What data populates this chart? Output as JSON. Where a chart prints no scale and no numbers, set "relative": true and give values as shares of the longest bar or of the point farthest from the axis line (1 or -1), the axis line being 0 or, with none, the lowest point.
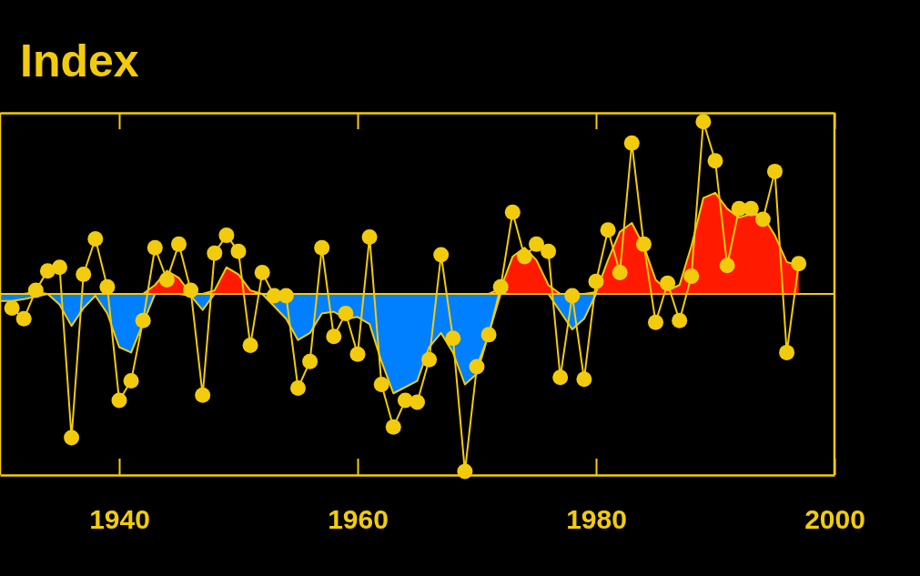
{
  "chart_data": {
    "type": "area",
    "title": "Index",
    "relative": true,
    "x": [
      1930,
      1931,
      1932,
      1933,
      1934,
      1935,
      1936,
      1937,
      1938,
      1939,
      1940,
      1941,
      1942,
      1943,
      1944,
      1945,
      1946,
      1947,
      1948,
      1949,
      1950,
      1951,
      1952,
      1953,
      1954,
      1955,
      1956,
      1957,
      1958,
      1959,
      1960,
      1961,
      1962,
      1963,
      1964,
      1965,
      1966,
      1967,
      1968,
      1969,
      1970,
      1971,
      1972,
      1973,
      1974,
      1975,
      1976,
      1977,
      1978,
      1979,
      1980,
      1981,
      1982,
      1983,
      1984,
      1985,
      1986,
      1987,
      1988,
      1989,
      1990,
      1991,
      1992,
      1993,
      1994,
      1995,
      1996,
      1997
    ],
    "xlim": [
      1930,
      2000
    ],
    "xticks": [
      1940,
      1960,
      1980,
      2000
    ],
    "series": [
      {
        "color": "#ff1a00",
        "values": [
          0,
          0,
          0,
          0.01,
          0,
          0,
          0,
          0,
          0,
          0,
          0,
          0,
          0,
          0.05,
          0.13,
          0.09,
          0,
          0,
          0.02,
          0.15,
          0.11,
          0.02,
          0,
          0,
          0,
          0,
          0,
          0,
          0,
          0,
          0,
          0,
          0,
          0,
          0,
          0,
          0,
          0,
          0,
          0,
          0,
          0,
          0.03,
          0.21,
          0.26,
          0.19,
          0.05,
          0,
          0,
          0,
          0.01,
          0.19,
          0.35,
          0.4,
          0.27,
          0.08,
          0.02,
          0.05,
          0.27,
          0.54,
          0.57,
          0.48,
          0.43,
          0.45,
          0.44,
          0.33,
          0.18,
          0.16
        ]
      },
      {
        "color": "#0080ff",
        "values": [
          -0.04,
          -0.04,
          -0.03,
          null,
          0,
          -0.06,
          -0.18,
          -0.08,
          -0.01,
          -0.11,
          -0.3,
          -0.33,
          null,
          0,
          0,
          0,
          -0.01,
          -0.09,
          0,
          0,
          0,
          0,
          0,
          null,
          -0.14,
          -0.26,
          -0.22,
          -0.11,
          -0.1,
          -0.14,
          -0.13,
          -0.17,
          -0.38,
          -0.56,
          null,
          -0.49,
          -0.3,
          -0.22,
          -0.33,
          -0.51,
          -0.45,
          null,
          0,
          0,
          0,
          0,
          0,
          -0.1,
          -0.2,
          -0.14,
          0,
          0,
          0,
          0,
          0,
          0,
          0,
          0,
          0,
          0,
          0,
          0,
          0,
          0,
          0,
          0,
          0,
          0
        ]
      },
      {
        "type": "line",
        "color": "#f2cc0c",
        "marker": "circle",
        "x": [
          1931,
          1932,
          1933,
          1934,
          1935,
          1936,
          1937,
          1938,
          1939,
          1940,
          1941,
          1942,
          1943,
          1944,
          1945,
          1946,
          1947,
          1948,
          1949,
          1950,
          1951,
          1952,
          1953,
          1954,
          1955,
          1956,
          1957,
          1958,
          1959,
          1960,
          1961,
          1962,
          1963,
          1964,
          1965,
          1966,
          1967,
          1968,
          1969,
          1970,
          1971,
          1972,
          1973,
          1974,
          1975,
          1976,
          1977,
          1978,
          1979,
          1980,
          1981,
          1982,
          1983,
          1984,
          1985,
          1986,
          1987,
          1988,
          1989,
          1990,
          1991,
          1992,
          1993,
          1994,
          1995,
          1996,
          1997
        ],
        "values": [
          -0.08,
          -0.14,
          0.02,
          0.13,
          0.15,
          -0.81,
          0.11,
          0.31,
          0.04,
          -0.6,
          -0.49,
          -0.15,
          0.26,
          0.08,
          0.28,
          0.02,
          -0.57,
          0.23,
          0.33,
          0.24,
          -0.29,
          0.12,
          -0.01,
          -0.01,
          -0.53,
          -0.38,
          0.26,
          -0.24,
          -0.11,
          -0.34,
          0.32,
          -0.51,
          -0.75,
          -0.6,
          -0.61,
          -0.37,
          0.22,
          -0.25,
          -1,
          -0.41,
          -0.23,
          0.04,
          0.46,
          0.21,
          0.28,
          0.24,
          -0.47,
          -0.01,
          -0.48,
          0.07,
          0.36,
          0.12,
          0.85,
          0.28,
          -0.16,
          0.06,
          -0.15,
          0.1,
          0.97,
          0.75,
          0.16,
          0.48,
          0.48,
          0.42,
          0.69,
          -0.33,
          0.17
        ]
      }
    ],
    "ref_lines": [
      {
        "axis": "y",
        "value": 0
      }
    ],
    "line_style": "solid",
    "grid": false
  }
}
